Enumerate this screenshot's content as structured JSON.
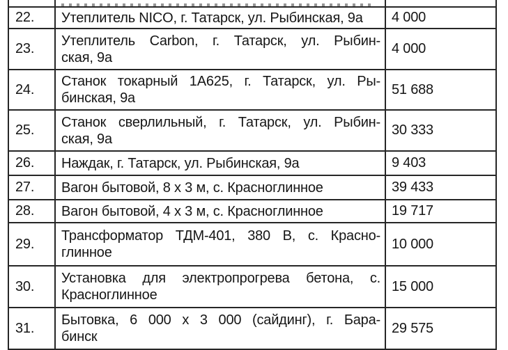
{
  "colors": {
    "background": "#ffffff",
    "border": "#262626",
    "text": "#161616"
  },
  "table": {
    "columns": [
      "number",
      "description",
      "value"
    ],
    "rows": [
      {
        "num": "",
        "line1": "",
        "line2": "",
        "value": ""
      },
      {
        "num": "22.",
        "line1": "Утеплитель NICO, г. Татарск, ул. Рыбинская, 9а",
        "line2": "",
        "value": "4 000"
      },
      {
        "num": "23.",
        "line1": "Утеплитель Carbon, г. Татарск, ул. Рыбин-",
        "line2": "ская, 9а",
        "value": "4 000"
      },
      {
        "num": "24.",
        "line1": "Станок токарный 1А625, г. Татарск, ул. Ры-",
        "line2": "бинская, 9а",
        "value": "51 688"
      },
      {
        "num": "25.",
        "line1": "Станок сверлильный, г. Татарск, ул. Рыбин-",
        "line2": "ская, 9а",
        "value": "30 333"
      },
      {
        "num": "26.",
        "line1": "Наждак, г. Татарск, ул. Рыбинская, 9а",
        "line2": "",
        "value": "9 403"
      },
      {
        "num": "27.",
        "line1": "Вагон бытовой, 8 х 3 м, с. Красноглинное",
        "line2": "",
        "value": "39 433"
      },
      {
        "num": "28.",
        "line1": "Вагон бытовой, 4 х 3 м, с. Красноглинное",
        "line2": "",
        "value": "19 717"
      },
      {
        "num": "29.",
        "line1": "Трансформатор ТДМ-401, 380 В, с. Красно-",
        "line2": "глинное",
        "value": "10 000"
      },
      {
        "num": "30.",
        "line1": "Установка для электропрогрева бетона, с.",
        "line2": "Красноглинное",
        "value": "15 000"
      },
      {
        "num": "31.",
        "line1": "Бытовка, 6 000 х 3 000 (сайдинг), г. Бара-",
        "line2": "бинск",
        "value": "29 575"
      }
    ]
  }
}
